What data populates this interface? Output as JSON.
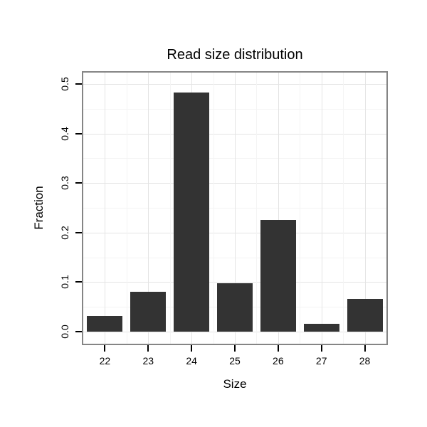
{
  "chart_data": {
    "type": "bar",
    "title": "Read size distribution",
    "xlabel": "Size",
    "ylabel": "Fraction",
    "categories": [
      "22",
      "23",
      "24",
      "25",
      "26",
      "27",
      "28"
    ],
    "values": [
      0.032,
      0.08,
      0.483,
      0.097,
      0.226,
      0.016,
      0.066
    ],
    "ylim": [
      0,
      0.5
    ],
    "yticks": [
      0.0,
      0.1,
      0.2,
      0.3,
      0.4,
      0.5
    ],
    "ytick_labels": [
      "0.0",
      "0.1",
      "0.2",
      "0.3",
      "0.4",
      "0.5"
    ],
    "grid": true,
    "legend": "none",
    "bar_color": "#333333",
    "panel_border_color": "#858585",
    "grid_major_color": "#e4e4e4",
    "grid_minor_color": "#f4f4f4",
    "tick_color": "#000000"
  }
}
